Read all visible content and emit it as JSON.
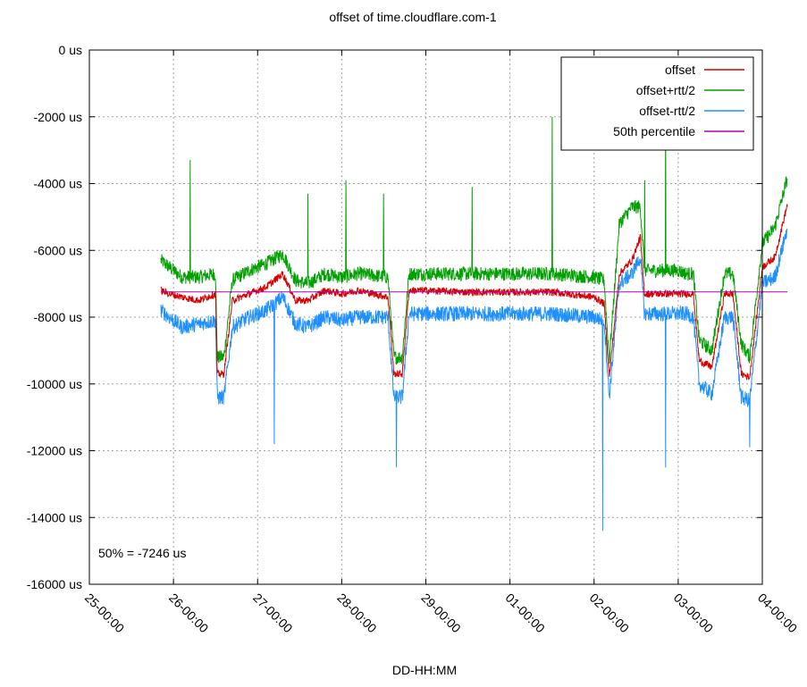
{
  "chart_data": {
    "type": "line",
    "title": "offset of time.cloudflare.com-1",
    "xlabel": "DD-HH:MM",
    "ylabel": "",
    "x_ticks": [
      "25-00:00",
      "26-00:00",
      "27-00:00",
      "28-00:00",
      "29-00:00",
      "01-00:00",
      "02-00:00",
      "03-00:00",
      "04-00:00"
    ],
    "y_ticks": [
      "0 us",
      "-2000 us",
      "-4000 us",
      "-6000 us",
      "-8000 us",
      "-10000 us",
      "-12000 us",
      "-14000 us",
      "-16000 us"
    ],
    "ylim": [
      -16000,
      0
    ],
    "x_units": "days since 25-00:00",
    "xlim": [
      0,
      8
    ],
    "grid": true,
    "legend_position": "top-right",
    "annotation": "50% = -7246 us",
    "series": [
      {
        "name": "offset",
        "color": "#d60000",
        "x": [
          0.85,
          0.95,
          1.1,
          1.3,
          1.5,
          1.52,
          1.6,
          1.7,
          1.9,
          2.1,
          2.3,
          2.45,
          2.6,
          2.8,
          3.0,
          3.2,
          3.55,
          3.62,
          3.72,
          3.8,
          4.0,
          4.5,
          5.0,
          5.5,
          6.0,
          6.12,
          6.18,
          6.3,
          6.45,
          6.55,
          6.6,
          7.0,
          7.1,
          7.18,
          7.25,
          7.4,
          7.55,
          7.65,
          7.75,
          7.85,
          8.0,
          8.15,
          8.3
        ],
        "y": [
          -7200,
          -7300,
          -7400,
          -7500,
          -7300,
          -9700,
          -9700,
          -7500,
          -7300,
          -7100,
          -6700,
          -7500,
          -7500,
          -7200,
          -7300,
          -7200,
          -7400,
          -9700,
          -9700,
          -7200,
          -7200,
          -7250,
          -7250,
          -7250,
          -7400,
          -7600,
          -9800,
          -6700,
          -6300,
          -5600,
          -7300,
          -7300,
          -7300,
          -7300,
          -9300,
          -9500,
          -7300,
          -7300,
          -9700,
          -9800,
          -6500,
          -6200,
          -4600
        ]
      },
      {
        "name": "offset+rtt/2",
        "color": "#00a000",
        "x": [
          0.85,
          0.95,
          1.1,
          1.3,
          1.5,
          1.52,
          1.6,
          1.7,
          1.9,
          2.1,
          2.3,
          2.45,
          2.6,
          2.8,
          3.0,
          3.2,
          3.55,
          3.62,
          3.72,
          3.8,
          4.0,
          4.5,
          5.0,
          5.5,
          6.0,
          6.12,
          6.18,
          6.3,
          6.45,
          6.55,
          6.6,
          7.0,
          7.1,
          7.18,
          7.25,
          7.4,
          7.55,
          7.65,
          7.75,
          7.85,
          8.0,
          8.15,
          8.3
        ],
        "y": [
          -6300,
          -6500,
          -6800,
          -6800,
          -6700,
          -9200,
          -9200,
          -6900,
          -6600,
          -6400,
          -6100,
          -6900,
          -7000,
          -6700,
          -6800,
          -6700,
          -6800,
          -9200,
          -9200,
          -6700,
          -6700,
          -6700,
          -6700,
          -6700,
          -6800,
          -6900,
          -9300,
          -5200,
          -4700,
          -4700,
          -6600,
          -6600,
          -6700,
          -6700,
          -8700,
          -9000,
          -6700,
          -6700,
          -8800,
          -9200,
          -5800,
          -5300,
          -3800
        ]
      },
      {
        "name": "offset-rtt/2",
        "color": "#1e90ff",
        "x": [
          0.85,
          0.95,
          1.1,
          1.3,
          1.5,
          1.52,
          1.6,
          1.7,
          1.9,
          2.1,
          2.3,
          2.45,
          2.6,
          2.8,
          3.0,
          3.2,
          3.55,
          3.62,
          3.72,
          3.8,
          4.0,
          4.5,
          5.0,
          5.5,
          6.0,
          6.12,
          6.18,
          6.3,
          6.45,
          6.55,
          6.6,
          7.0,
          7.1,
          7.18,
          7.25,
          7.4,
          7.55,
          7.65,
          7.75,
          7.85,
          8.0,
          8.15,
          8.3
        ],
        "y": [
          -7800,
          -8000,
          -8300,
          -8200,
          -8100,
          -10400,
          -10400,
          -8300,
          -8000,
          -7800,
          -7400,
          -8200,
          -8300,
          -8000,
          -8100,
          -8000,
          -8000,
          -10400,
          -10400,
          -7900,
          -7900,
          -7900,
          -7900,
          -7900,
          -8000,
          -8100,
          -10400,
          -7000,
          -6700,
          -6200,
          -7900,
          -7900,
          -7900,
          -8000,
          -10000,
          -10300,
          -8000,
          -8000,
          -10400,
          -10500,
          -7000,
          -6800,
          -5300
        ]
      },
      {
        "name": "50th percentile",
        "color": "#b000b0",
        "x": [
          0.85,
          8.3
        ],
        "y": [
          -7246,
          -7246
        ]
      }
    ],
    "spikes": [
      {
        "series": "offset+rtt/2",
        "x": 1.2,
        "y": -3300
      },
      {
        "series": "offset+rtt/2",
        "x": 2.6,
        "y": -4300
      },
      {
        "series": "offset+rtt/2",
        "x": 3.05,
        "y": -3900
      },
      {
        "series": "offset+rtt/2",
        "x": 3.5,
        "y": -4300
      },
      {
        "series": "offset+rtt/2",
        "x": 4.55,
        "y": -4100
      },
      {
        "series": "offset+rtt/2",
        "x": 5.5,
        "y": -2000
      },
      {
        "series": "offset+rtt/2",
        "x": 6.6,
        "y": -3900
      },
      {
        "series": "offset+rtt/2",
        "x": 6.85,
        "y": -1200
      },
      {
        "series": "offset-rtt/2",
        "x": 2.2,
        "y": -11800
      },
      {
        "series": "offset-rtt/2",
        "x": 3.65,
        "y": -12500
      },
      {
        "series": "offset-rtt/2",
        "x": 6.1,
        "y": -14400
      },
      {
        "series": "offset-rtt/2",
        "x": 6.85,
        "y": -12500
      },
      {
        "series": "offset-rtt/2",
        "x": 7.85,
        "y": -11900
      }
    ]
  }
}
